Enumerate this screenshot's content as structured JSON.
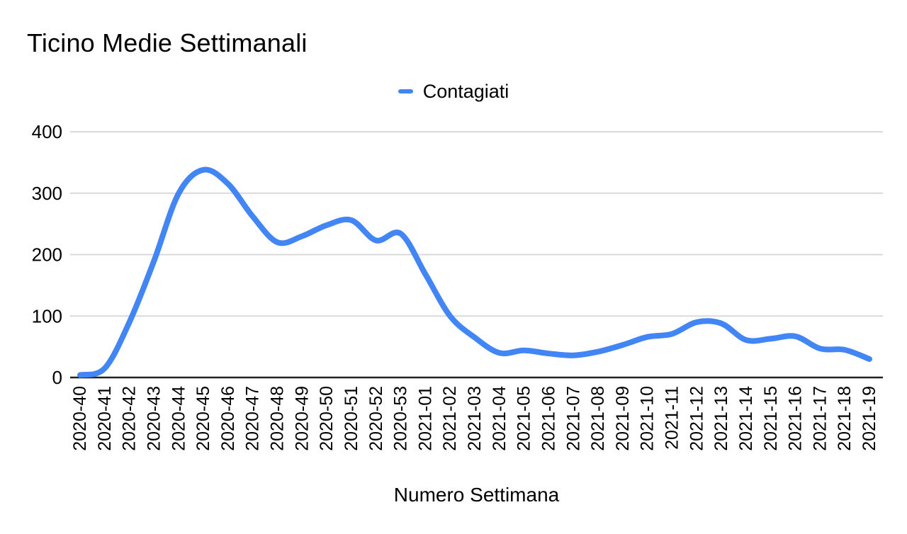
{
  "title": "Ticino Medie Settimanali",
  "legend": {
    "items": [
      {
        "label": "Contagiati",
        "color": "#4285f4"
      }
    ]
  },
  "colors": {
    "series_line": "#4285f4",
    "gridline": "#d9d9d9",
    "axis_line": "#212121",
    "text": "#000000"
  },
  "chart_data": {
    "type": "line",
    "title": "Ticino Medie Settimanali",
    "xlabel": "Numero Settimana",
    "ylabel": "",
    "ylim": [
      0,
      400
    ],
    "yticks": [
      0,
      100,
      200,
      300,
      400
    ],
    "grid": true,
    "smooth": true,
    "legend_position": "top-center",
    "x_tick_rotation": 90,
    "categories": [
      "2020-40",
      "2020-41",
      "2020-42",
      "2020-43",
      "2020-44",
      "2020-45",
      "2020-46",
      "2020-47",
      "2020-48",
      "2020-49",
      "2020-50",
      "2020-51",
      "2020-52",
      "2020-53",
      "2021-01",
      "2021-02",
      "2021-03",
      "2021-04",
      "2021-05",
      "2021-06",
      "2021-07",
      "2021-08",
      "2021-09",
      "2021-10",
      "2021-11",
      "2021-12",
      "2021-13",
      "2021-14",
      "2021-15",
      "2021-16",
      "2021-17",
      "2021-18",
      "2021-19"
    ],
    "series": [
      {
        "name": "Contagiati",
        "color": "#4285f4",
        "values": [
          4,
          15,
          90,
          190,
          300,
          338,
          315,
          262,
          220,
          230,
          248,
          256,
          223,
          234,
          168,
          100,
          65,
          40,
          44,
          39,
          36,
          42,
          53,
          66,
          71,
          90,
          88,
          61,
          63,
          67,
          47,
          45,
          30
        ]
      }
    ]
  }
}
